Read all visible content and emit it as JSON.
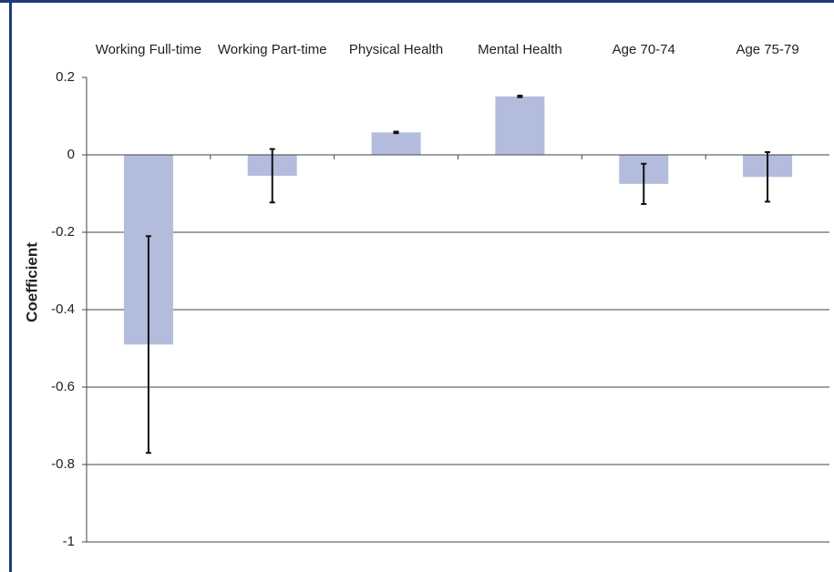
{
  "chart_data": {
    "type": "bar",
    "y_label": "Coefficient",
    "categories": [
      "Working Full-time",
      "Working Part-time",
      "Physical Health",
      "Mental Health",
      "Age 70-74",
      "Age 75-79"
    ],
    "values": [
      -0.49,
      -0.054,
      0.058,
      0.151,
      -0.075,
      -0.057
    ],
    "errors": [
      0.28,
      0.069,
      0.002,
      0.002,
      0.052,
      0.064
    ],
    "color": "#b3bcdc",
    "ylim": [
      -1,
      0.2
    ],
    "yticks": [
      0.2,
      0,
      -0.2,
      -0.4,
      -0.6,
      -0.8,
      -1
    ],
    "grid": true
  }
}
